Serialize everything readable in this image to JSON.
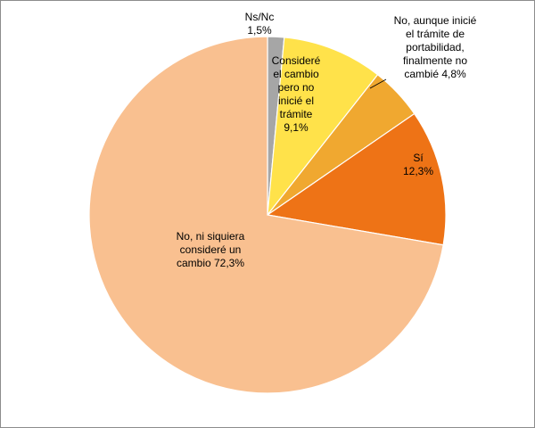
{
  "chart_data": {
    "type": "pie",
    "title": "",
    "slices": [
      {
        "label_lines": [
          "Ns/Nc",
          "1,5%"
        ],
        "value": 1.5,
        "color": "#a6a6a6"
      },
      {
        "label_lines": [
          "Consideré",
          "el cambio",
          "pero no",
          "inicié el",
          "trámite",
          "9,1%"
        ],
        "value": 9.1,
        "color": "#ffe24a"
      },
      {
        "label_lines": [
          "No, aunque inicié",
          "el trámite de",
          "portabilidad,",
          "finalmente no",
          "cambié 4,8%"
        ],
        "value": 4.8,
        "color": "#f0a830"
      },
      {
        "label_lines": [
          "Sí",
          "12,3%"
        ],
        "value": 12.3,
        "color": "#ee7316"
      },
      {
        "label_lines": [
          "No, ni siquiera",
          "consideré un",
          "cambio  72,3%"
        ],
        "value": 72.3,
        "color": "#f9c090"
      }
    ],
    "start_angle_deg": 0,
    "direction": "clockwise",
    "slice_border_color": "#ffffff",
    "legend": "none",
    "grid": false
  }
}
